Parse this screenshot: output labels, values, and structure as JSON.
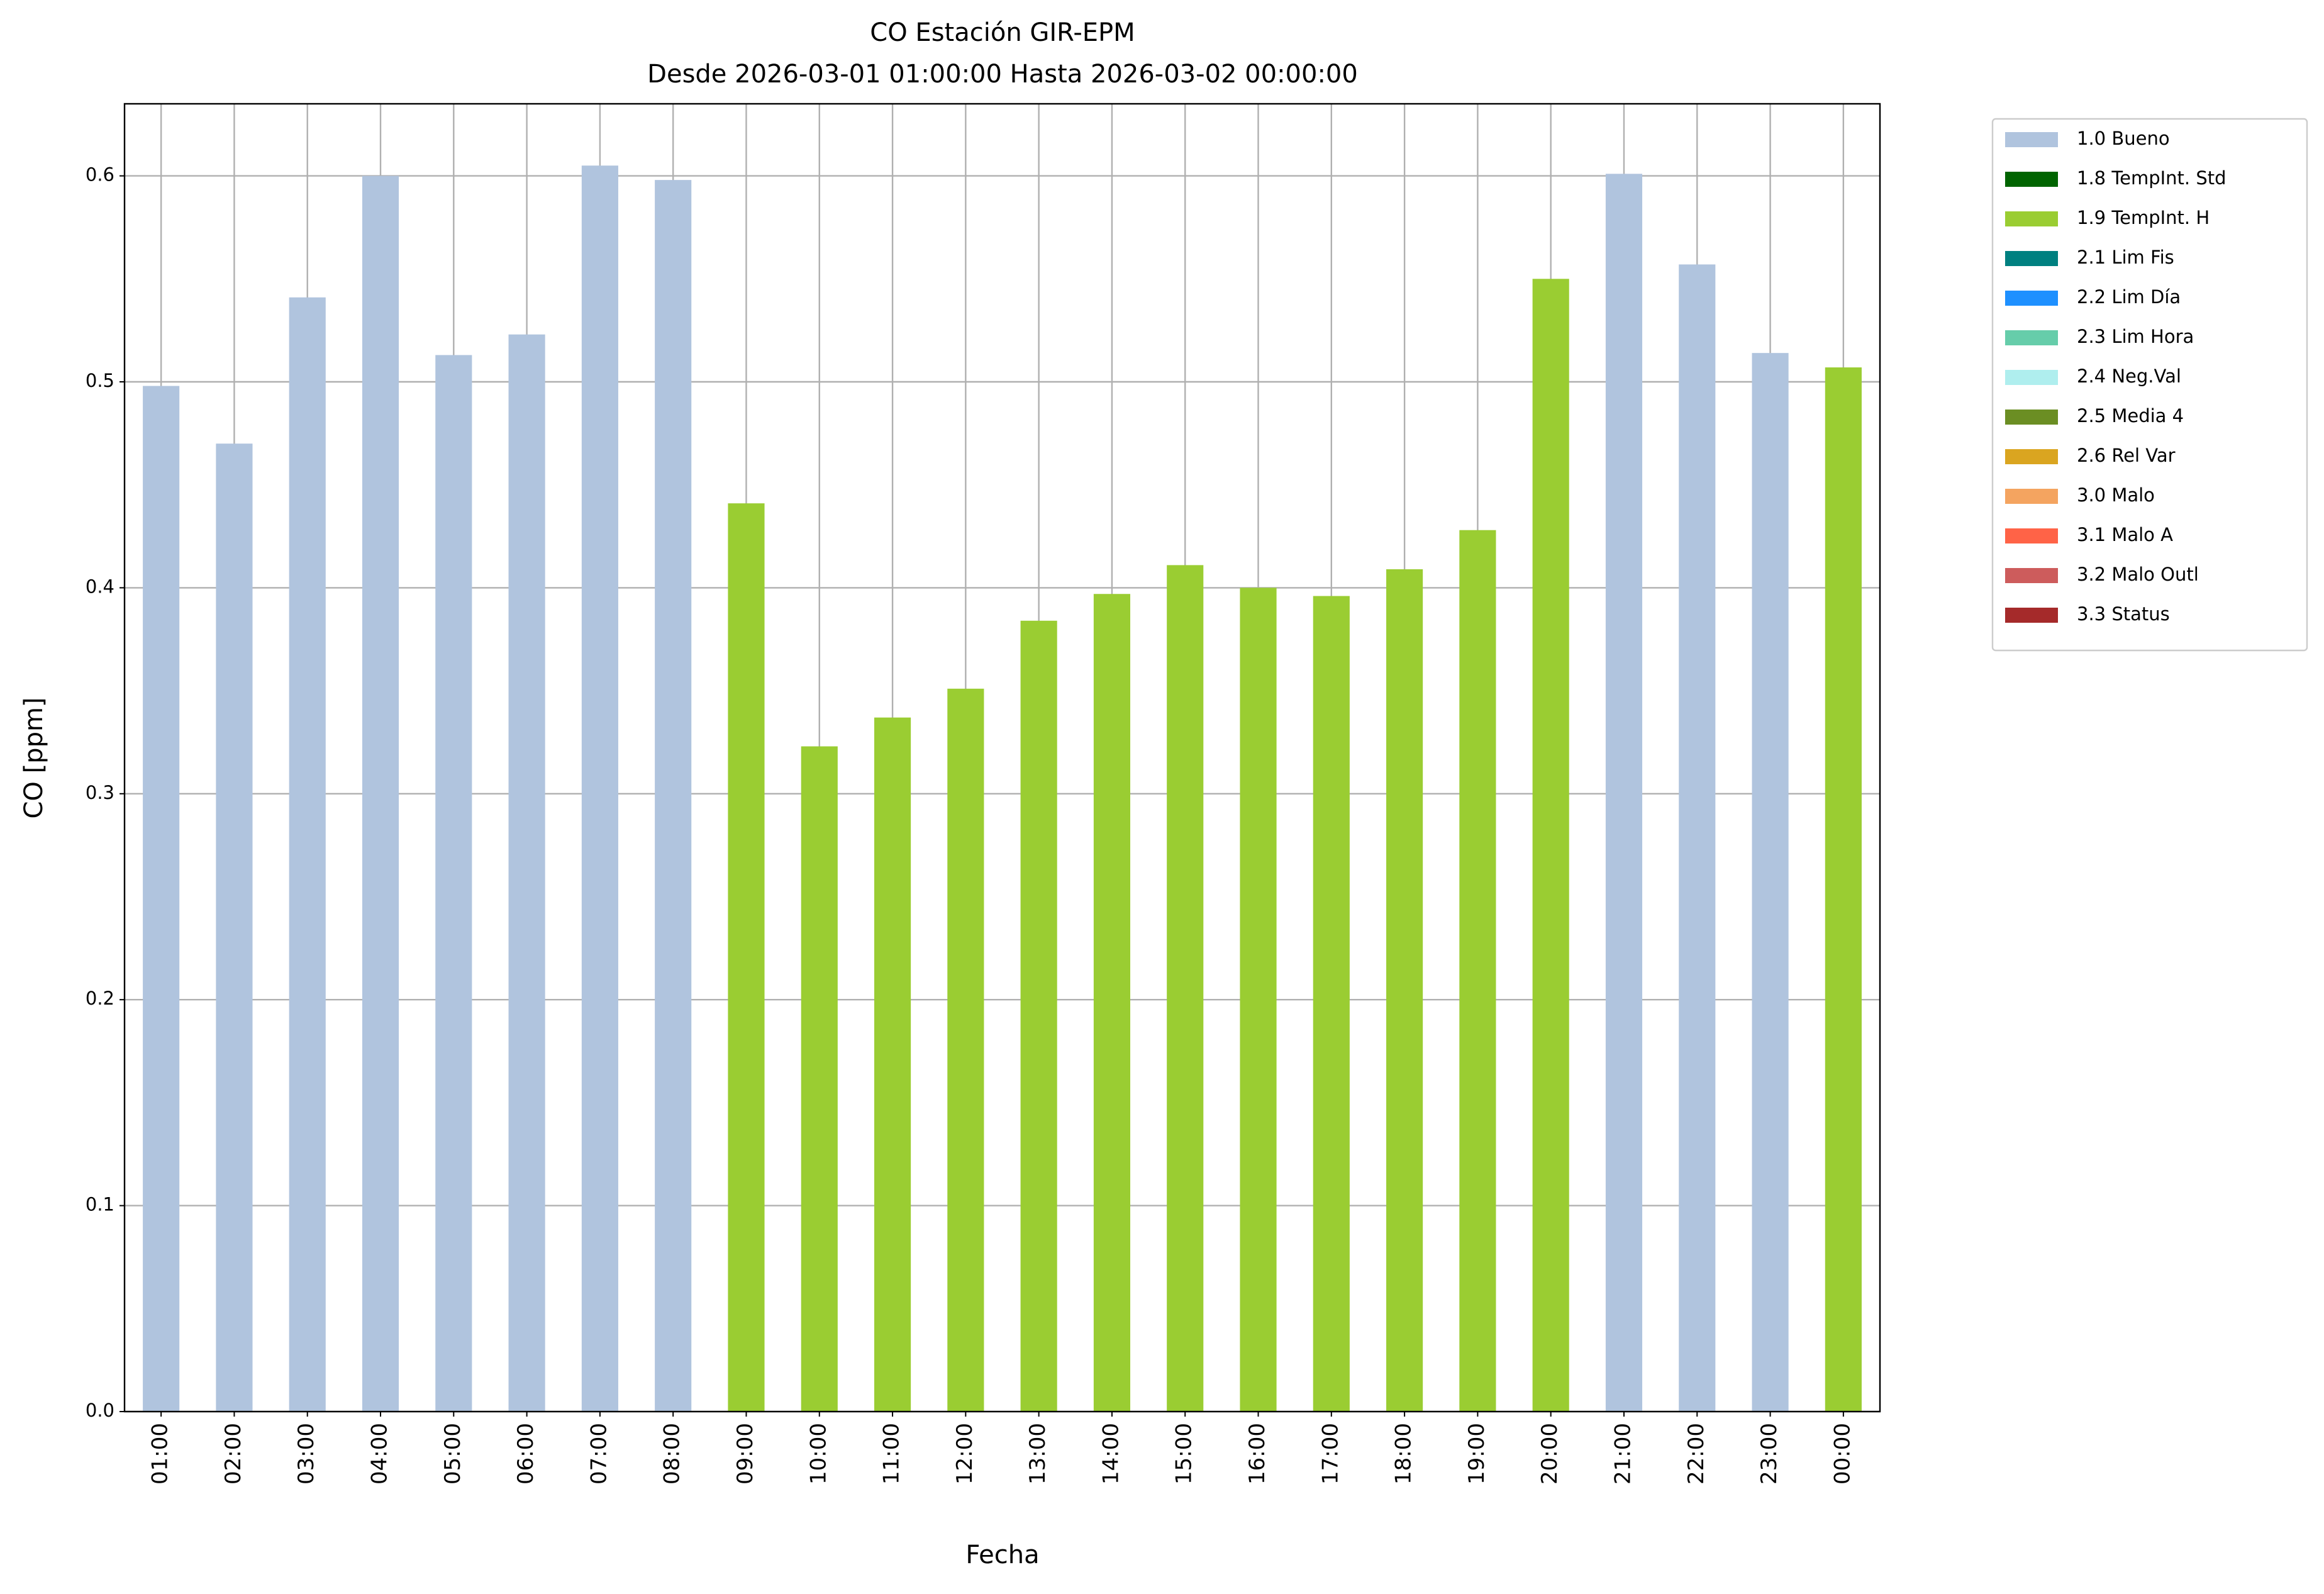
{
  "chart_data": {
    "type": "bar",
    "stacked": true,
    "title": "CO Estación GIR-EPM",
    "subtitle": "Desde 2026-03-01 01:00:00 Hasta 2026-03-02 00:00:00",
    "x_label": "Fecha",
    "y_label": "CO [ppm]",
    "categories": [
      "01:00",
      "02:00",
      "03:00",
      "04:00",
      "05:00",
      "06:00",
      "07:00",
      "08:00",
      "09:00",
      "10:00",
      "11:00",
      "12:00",
      "13:00",
      "14:00",
      "15:00",
      "16:00",
      "17:00",
      "18:00",
      "19:00",
      "20:00",
      "21:00",
      "22:00",
      "23:00",
      "00:00"
    ],
    "series": [
      {
        "name": "1.0 Bueno",
        "color": "#b0c4de",
        "values": [
          0.498,
          0.47,
          0.541,
          0.6,
          0.513,
          0.523,
          0.605,
          0.598,
          null,
          null,
          null,
          null,
          null,
          null,
          null,
          null,
          null,
          null,
          null,
          null,
          0.601,
          0.557,
          0.514,
          null
        ]
      },
      {
        "name": "1.8 TempInt. Std",
        "color": "#006400",
        "values": [
          null,
          null,
          null,
          null,
          null,
          null,
          null,
          null,
          null,
          null,
          null,
          null,
          null,
          null,
          null,
          null,
          null,
          null,
          null,
          null,
          null,
          null,
          null,
          null
        ]
      },
      {
        "name": "1.9 TempInt. H",
        "color": "#9acd32",
        "values": [
          null,
          null,
          null,
          null,
          null,
          null,
          null,
          null,
          0.441,
          0.323,
          0.337,
          0.351,
          0.384,
          0.397,
          0.411,
          0.4,
          0.396,
          0.409,
          0.428,
          0.55,
          null,
          null,
          null,
          0.507
        ]
      },
      {
        "name": "2.1 Lim Fis",
        "color": "#008080",
        "values": [
          null,
          null,
          null,
          null,
          null,
          null,
          null,
          null,
          null,
          null,
          null,
          null,
          null,
          null,
          null,
          null,
          null,
          null,
          null,
          null,
          null,
          null,
          null,
          null
        ]
      },
      {
        "name": "2.2 Lim Día",
        "color": "#1e90ff",
        "values": [
          null,
          null,
          null,
          null,
          null,
          null,
          null,
          null,
          null,
          null,
          null,
          null,
          null,
          null,
          null,
          null,
          null,
          null,
          null,
          null,
          null,
          null,
          null,
          null
        ]
      },
      {
        "name": "2.3 Lim Hora",
        "color": "#66cdaa",
        "values": [
          null,
          null,
          null,
          null,
          null,
          null,
          null,
          null,
          null,
          null,
          null,
          null,
          null,
          null,
          null,
          null,
          null,
          null,
          null,
          null,
          null,
          null,
          null,
          null
        ]
      },
      {
        "name": "2.4 Neg.Val",
        "color": "#afeeee",
        "values": [
          null,
          null,
          null,
          null,
          null,
          null,
          null,
          null,
          null,
          null,
          null,
          null,
          null,
          null,
          null,
          null,
          null,
          null,
          null,
          null,
          null,
          null,
          null,
          null
        ]
      },
      {
        "name": "2.5 Media 4",
        "color": "#6b8e23",
        "values": [
          null,
          null,
          null,
          null,
          null,
          null,
          null,
          null,
          null,
          null,
          null,
          null,
          null,
          null,
          null,
          null,
          null,
          null,
          null,
          null,
          null,
          null,
          null,
          null
        ]
      },
      {
        "name": "2.6 Rel Var",
        "color": "#daa520",
        "values": [
          null,
          null,
          null,
          null,
          null,
          null,
          null,
          null,
          null,
          null,
          null,
          null,
          null,
          null,
          null,
          null,
          null,
          null,
          null,
          null,
          null,
          null,
          null,
          null
        ]
      },
      {
        "name": "3.0 Malo",
        "color": "#f4a460",
        "values": [
          null,
          null,
          null,
          null,
          null,
          null,
          null,
          null,
          null,
          null,
          null,
          null,
          null,
          null,
          null,
          null,
          null,
          null,
          null,
          null,
          null,
          null,
          null,
          null
        ]
      },
      {
        "name": "3.1 Malo A",
        "color": "#ff6347",
        "values": [
          null,
          null,
          null,
          null,
          null,
          null,
          null,
          null,
          null,
          null,
          null,
          null,
          null,
          null,
          null,
          null,
          null,
          null,
          null,
          null,
          null,
          null,
          null,
          null
        ]
      },
      {
        "name": "3.2 Malo Outl",
        "color": "#cd5c5c",
        "values": [
          null,
          null,
          null,
          null,
          null,
          null,
          null,
          null,
          null,
          null,
          null,
          null,
          null,
          null,
          null,
          null,
          null,
          null,
          null,
          null,
          null,
          null,
          null,
          null
        ]
      },
      {
        "name": "3.3 Status",
        "color": "#a52a2a",
        "values": [
          null,
          null,
          null,
          null,
          null,
          null,
          null,
          null,
          null,
          null,
          null,
          null,
          null,
          null,
          null,
          null,
          null,
          null,
          null,
          null,
          null,
          null,
          null,
          null
        ]
      }
    ],
    "ylim": [
      0,
      0.635
    ],
    "yticks": [
      {
        "value": 0,
        "label": "0.0"
      },
      0.1,
      0.2,
      0.3,
      0.4,
      0.5,
      0.6
    ],
    "grid": true,
    "legend": "outside right"
  }
}
